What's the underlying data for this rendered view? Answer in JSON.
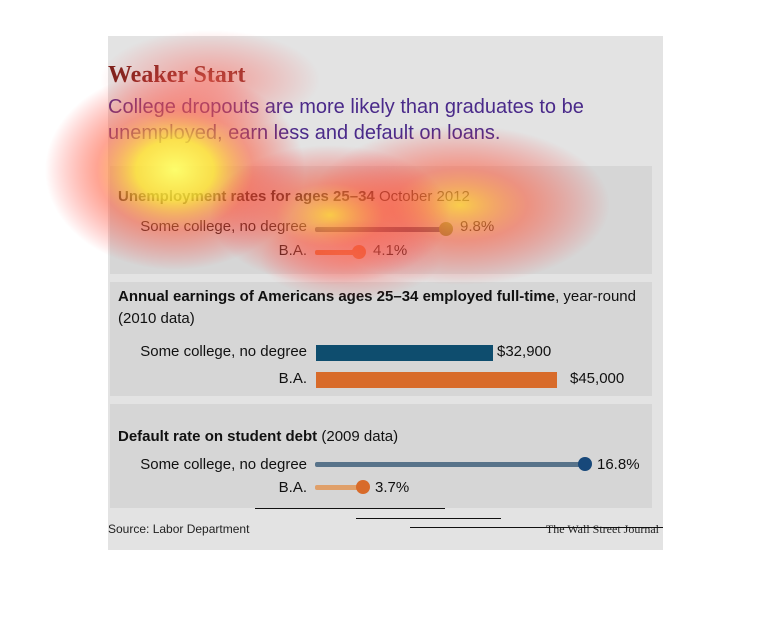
{
  "title": "Weaker Start",
  "subtitle": "College dropouts are more likely than graduates to be unemployed, earn less and default on loans.",
  "source": "Source: Labor Department",
  "credit": "The Wall Street Journal",
  "colors": {
    "navy": "#0e4d6e",
    "orange": "#d86b2a",
    "light_orange": "#e0a06a",
    "steel": "#5f7e99",
    "dark_navy": "#17487a",
    "slate": "#58738a"
  },
  "chart_data": [
    {
      "type": "bar",
      "title": "Unemployment rates for ages 25–34",
      "title_suffix": "October 2012",
      "categories": [
        "Some college, no degree",
        "B.A."
      ],
      "values": [
        9.8,
        4.1
      ],
      "labels": [
        "9.8%",
        "4.1%"
      ],
      "unit": "%"
    },
    {
      "type": "bar",
      "title": "Annual earnings of Americans ages 25–34 employed full-time",
      "title_suffix": ", year-round (2010 data)",
      "categories": [
        "Some college, no degree",
        "B.A."
      ],
      "values": [
        32900,
        45000
      ],
      "labels": [
        "$32,900",
        "$45,000"
      ],
      "unit": "$"
    },
    {
      "type": "bar",
      "title": "Default rate on student debt",
      "title_suffix": "(2009 data)",
      "categories": [
        "Some college, no degree",
        "B.A."
      ],
      "values": [
        16.8,
        3.7
      ],
      "labels": [
        "16.8%",
        "3.7%"
      ],
      "unit": "%"
    }
  ]
}
